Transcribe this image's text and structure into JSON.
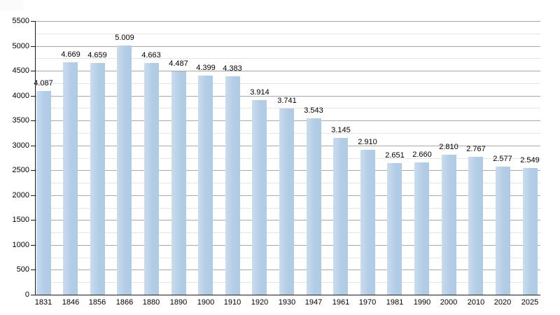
{
  "chart_data": {
    "type": "bar",
    "title": "",
    "xlabel": "",
    "ylabel": "",
    "categories": [
      "1831",
      "1846",
      "1856",
      "1866",
      "1880",
      "1890",
      "1900",
      "1910",
      "1920",
      "1930",
      "1947",
      "1961",
      "1970",
      "1981",
      "1990",
      "2000",
      "2010",
      "2020",
      "2025"
    ],
    "values": [
      4087,
      4669,
      4659,
      5009,
      4663,
      4487,
      4399,
      4383,
      3914,
      3741,
      3543,
      3145,
      2910,
      2651,
      2660,
      2810,
      2767,
      2577,
      2549
    ],
    "value_labels": [
      "4.087",
      "4.669",
      "4.659",
      "5.009",
      "4.663",
      "4.487",
      "4.399",
      "4.383",
      "3.914",
      "3.741",
      "3.543",
      "3.145",
      "2.910",
      "2.651",
      "2.660",
      "2.810",
      "2.767",
      "2.577",
      "2.549"
    ],
    "ylim": [
      0,
      5500
    ],
    "y_major_ticks": [
      0,
      500,
      1000,
      1500,
      2000,
      2500,
      3000,
      3500,
      4000,
      4500,
      5000,
      5500
    ],
    "y_minor_step": 250,
    "grid": "horizontal major+minor, behind bars",
    "legend": "none",
    "colors": {
      "bar_fill": "#b3cde6",
      "bar_fill_light_edge": "#cadcee",
      "major_gridline": "#a9a9a9",
      "minor_gridline": "#e4e4e4",
      "axis": "#1a1a1a",
      "label_text": "#000000",
      "background": "#ffffff"
    }
  }
}
